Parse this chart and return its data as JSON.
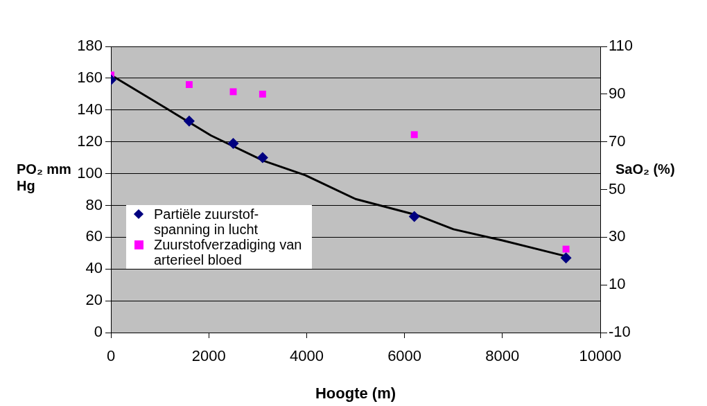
{
  "chart_data": {
    "type": "scatter",
    "xlabel": "Hoogte (m)",
    "ylabel": "PO₂ mm Hg",
    "y2label": "SaO₂ (%)",
    "x": [
      0,
      1600,
      2500,
      3100,
      6200,
      9300
    ],
    "series": [
      {
        "name": "Partiële zuurstof-spanning in lucht",
        "color": "#000080",
        "marker": "diamond",
        "values": [
          159,
          133,
          119,
          110,
          73,
          47
        ]
      },
      {
        "name": "Zuurstofverzadiging van arterieel bloed",
        "color": "#ff00ff",
        "marker": "square",
        "axis": "y2",
        "values": [
          98,
          94,
          91,
          90,
          73,
          25
        ]
      },
      {
        "type": "line",
        "color": "#000000",
        "marker": "none",
        "x": [
          0,
          1135,
          2043,
          3121,
          3972,
          5000,
          6241,
          7000,
          8000,
          9300
        ],
        "values": [
          162,
          141,
          124,
          108,
          99,
          84,
          74,
          65,
          58,
          48
        ]
      }
    ],
    "xlim": [
      0,
      10000
    ],
    "xticks": [
      0,
      2000,
      4000,
      6000,
      8000,
      10000
    ],
    "ylim": [
      0,
      180
    ],
    "yticks": [
      0,
      20,
      40,
      60,
      80,
      100,
      120,
      140,
      160,
      180
    ],
    "y2lim": [
      -10,
      110
    ],
    "y2ticks": [
      -10,
      10,
      30,
      50,
      70,
      90,
      110
    ],
    "grid": "y",
    "legend": "left"
  }
}
